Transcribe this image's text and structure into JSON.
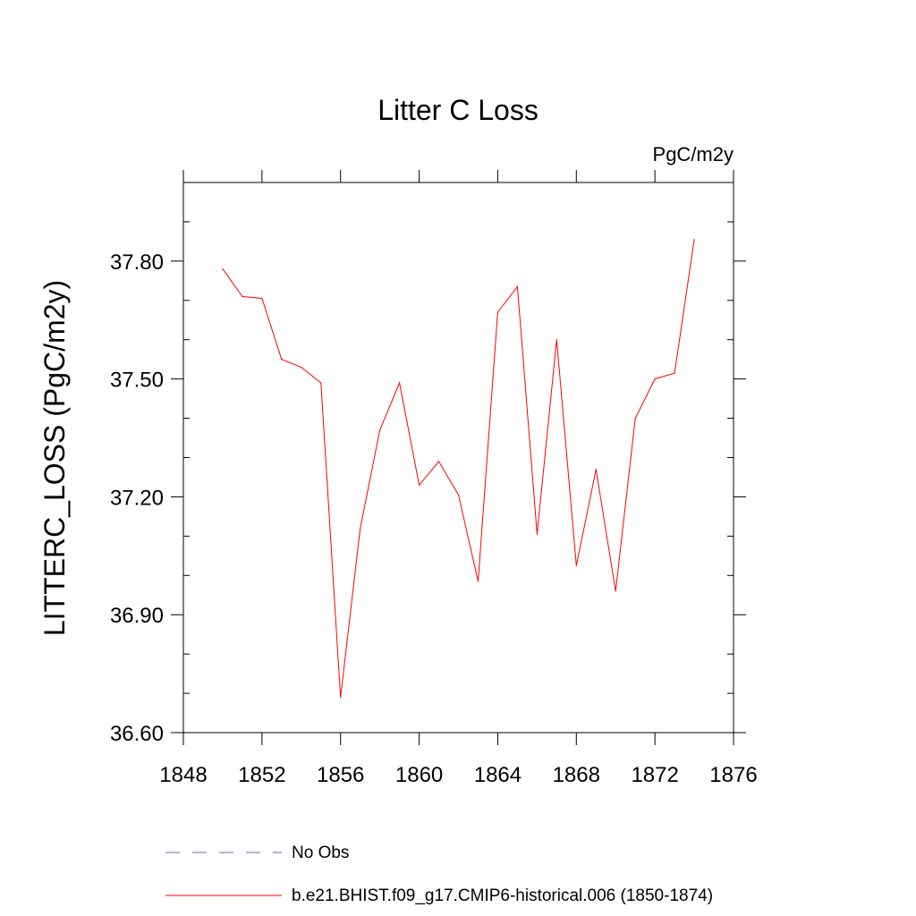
{
  "chart_data": {
    "type": "line",
    "title": "Litter C Loss",
    "units": "PgC/m2y",
    "xlabel": "",
    "ylabel": "LITTERC_LOSS  (PgC/m2y)",
    "xlim": [
      1848,
      1876
    ],
    "ylim": [
      36.6,
      38.0
    ],
    "xticks": [
      1848,
      1852,
      1856,
      1860,
      1864,
      1868,
      1872,
      1876
    ],
    "xtick_labels": [
      "1848",
      "1852",
      "1856",
      "1860",
      "1864",
      "1868",
      "1872",
      "1876"
    ],
    "yticks": [
      36.6,
      36.9,
      37.2,
      37.5,
      37.8
    ],
    "ytick_labels": [
      "36.60",
      "36.90",
      "37.20",
      "37.50",
      "37.80"
    ],
    "grid": false,
    "series": [
      {
        "name": "b.e21.BHIST.f09_g17.CMIP6-historical.006 (1850-1874)",
        "color": "#ff0000",
        "style": "solid",
        "x": [
          1850,
          1851,
          1852,
          1853,
          1854,
          1855,
          1856,
          1857,
          1858,
          1859,
          1860,
          1861,
          1862,
          1863,
          1864,
          1865,
          1866,
          1867,
          1868,
          1869,
          1870,
          1871,
          1872,
          1873,
          1874
        ],
        "values": [
          37.78,
          37.71,
          37.705,
          37.55,
          37.53,
          37.49,
          36.69,
          37.12,
          37.37,
          37.49,
          37.23,
          37.29,
          37.205,
          36.985,
          37.67,
          37.735,
          37.105,
          37.6,
          37.025,
          37.27,
          36.96,
          37.4,
          37.5,
          37.515,
          37.855
        ]
      }
    ],
    "legend": [
      {
        "label": "No Obs",
        "color": "#6a6ab0",
        "style": "dashed"
      },
      {
        "label": "b.e21.BHIST.f09_g17.CMIP6-historical.006 (1850-1874)",
        "color": "#ff0000",
        "style": "solid"
      }
    ],
    "legend_position": "bottom"
  }
}
